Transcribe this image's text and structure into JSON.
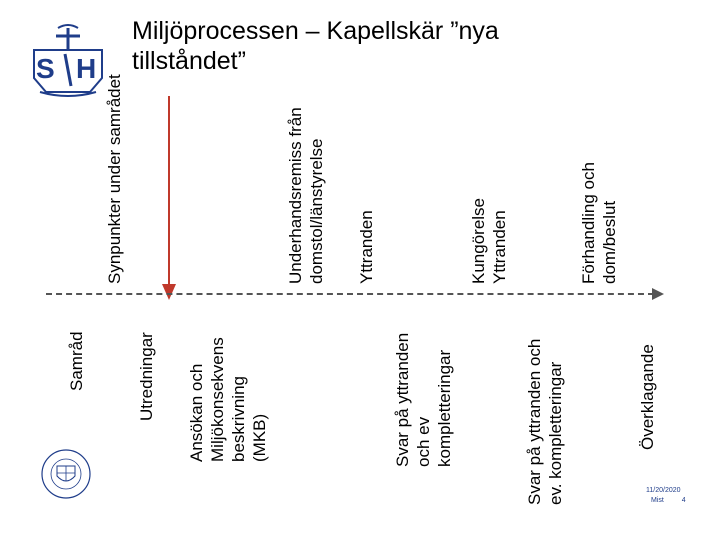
{
  "title": "Miljöprocessen – Kapellskär ”nya tillståndet”",
  "upper_steps": [
    {
      "line1": "Synpunkter under samrådet",
      "line2": ""
    },
    {
      "line1": "Underhandsremiss från",
      "line2": "domstol/länstyrelse"
    },
    {
      "line1": "Yttranden",
      "line2": ""
    },
    {
      "line1": "Kungörelse",
      "line2": "Yttranden"
    },
    {
      "line1": "Förhandling och",
      "line2": "dom/beslut"
    }
  ],
  "lower_steps": [
    {
      "lines": [
        "Samråd"
      ]
    },
    {
      "lines": [
        "Utredningar"
      ]
    },
    {
      "lines": [
        "Ansökan och",
        "Miljökonsekvens",
        "beskrivning",
        "(MKB)"
      ]
    },
    {
      "lines": [
        "Svar på yttranden",
        "och ev",
        "kompletteringar"
      ]
    },
    {
      "lines": [
        "Svar på yttranden och",
        "ev. kompletteringar"
      ]
    },
    {
      "lines": [
        "Överklagande"
      ]
    }
  ],
  "footer": {
    "date": "11/20/2020",
    "page_label": "Mist",
    "page_number": "4"
  },
  "colors": {
    "accent_red": "#c0392b",
    "logo_blue": "#1f3d8a"
  }
}
